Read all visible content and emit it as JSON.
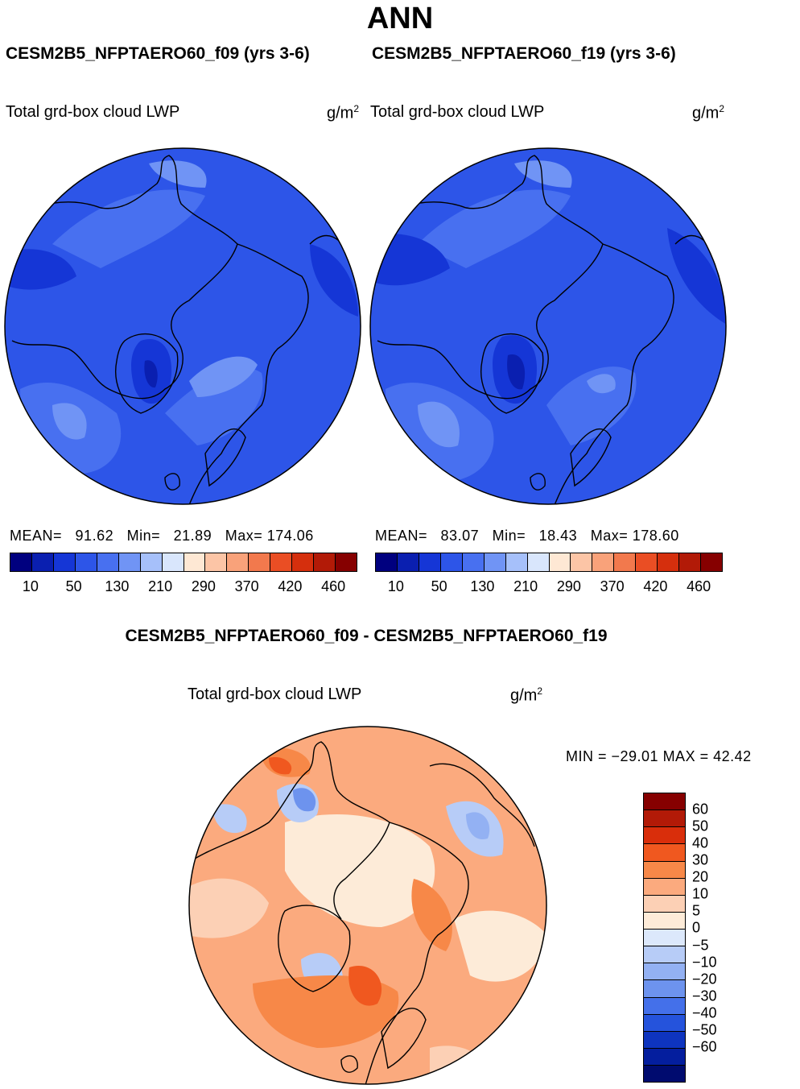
{
  "page": {
    "title": "ANN",
    "diff_title": "CESM2B5_NFPTAERO60_f09 - CESM2B5_NFPTAERO60_f19"
  },
  "panels": [
    {
      "case": "CESM2B5_NFPTAERO60_f09 (yrs 3-6)",
      "variable": "Total grd-box cloud LWP",
      "units": "g/m",
      "units_exp": "2",
      "mean_label": "MEAN=",
      "mean": "91.62",
      "min_label": "Min=",
      "min": "21.89",
      "max_label": "Max=",
      "max": "174.06"
    },
    {
      "case": "CESM2B5_NFPTAERO60_f19 (yrs 3-6)",
      "variable": "Total grd-box cloud LWP",
      "units": "g/m",
      "units_exp": "2",
      "mean_label": "MEAN=",
      "mean": "83.07",
      "min_label": "Min=",
      "min": "18.43",
      "max_label": "Max=",
      "max": "178.60"
    }
  ],
  "diff_panel": {
    "variable": "Total grd-box cloud LWP",
    "units": "g/m",
    "units_exp": "2",
    "min_max_text": "MIN = −29.01  MAX =   42.42"
  },
  "colorbars": {
    "abs_colors": [
      "#00007f",
      "#0a1fb0",
      "#1536d6",
      "#2d55e8",
      "#4870f0",
      "#7094f5",
      "#a6c0fa",
      "#d9e6fc",
      "#fee8d4",
      "#fcc5a6",
      "#f9a27a",
      "#f2794d",
      "#ea4e24",
      "#d52f0d",
      "#b21a07",
      "#860000"
    ],
    "abs_ticks": [
      "10",
      "50",
      "130",
      "210",
      "290",
      "370",
      "420",
      "460"
    ],
    "diff_colors": [
      "#860000",
      "#b21a07",
      "#d92e0b",
      "#f0581f",
      "#f78848",
      "#fbaa7e",
      "#fcd0b5",
      "#fdebd8",
      "#dce8fb",
      "#b7ccf7",
      "#93b1f3",
      "#6d93ee",
      "#4470ea",
      "#2553dc",
      "#0e34bf",
      "#041e9e",
      "#000b6f"
    ],
    "diff_ticks": [
      "60",
      "50",
      "40",
      "30",
      "20",
      "10",
      "5",
      "0",
      "−5",
      "−10",
      "−20",
      "−30",
      "−40",
      "−50",
      "−60"
    ]
  },
  "chart_data": [
    {
      "type": "heatmap",
      "projection": "north-polar-stereographic",
      "title": "CESM2B5_NFPTAERO60_f09 (yrs 3-6)",
      "variable": "Total grd-box cloud LWP",
      "units": "g/m2",
      "contour_levels": [
        10,
        50,
        130,
        210,
        290,
        370,
        420,
        460
      ],
      "stats": {
        "mean": 91.62,
        "min": 21.89,
        "max": 174.06
      }
    },
    {
      "type": "heatmap",
      "projection": "north-polar-stereographic",
      "title": "CESM2B5_NFPTAERO60_f19 (yrs 3-6)",
      "variable": "Total grd-box cloud LWP",
      "units": "g/m2",
      "contour_levels": [
        10,
        50,
        130,
        210,
        290,
        370,
        420,
        460
      ],
      "stats": {
        "mean": 83.07,
        "min": 18.43,
        "max": 178.6
      }
    },
    {
      "type": "heatmap",
      "projection": "north-polar-stereographic",
      "title": "CESM2B5_NFPTAERO60_f09 - CESM2B5_NFPTAERO60_f19",
      "variable": "Total grd-box cloud LWP",
      "units": "g/m2",
      "contour_levels": [
        60,
        50,
        40,
        30,
        20,
        10,
        5,
        0,
        -5,
        -10,
        -20,
        -30,
        -40,
        -50,
        -60
      ],
      "stats": {
        "min": -29.01,
        "max": 42.42
      }
    }
  ]
}
